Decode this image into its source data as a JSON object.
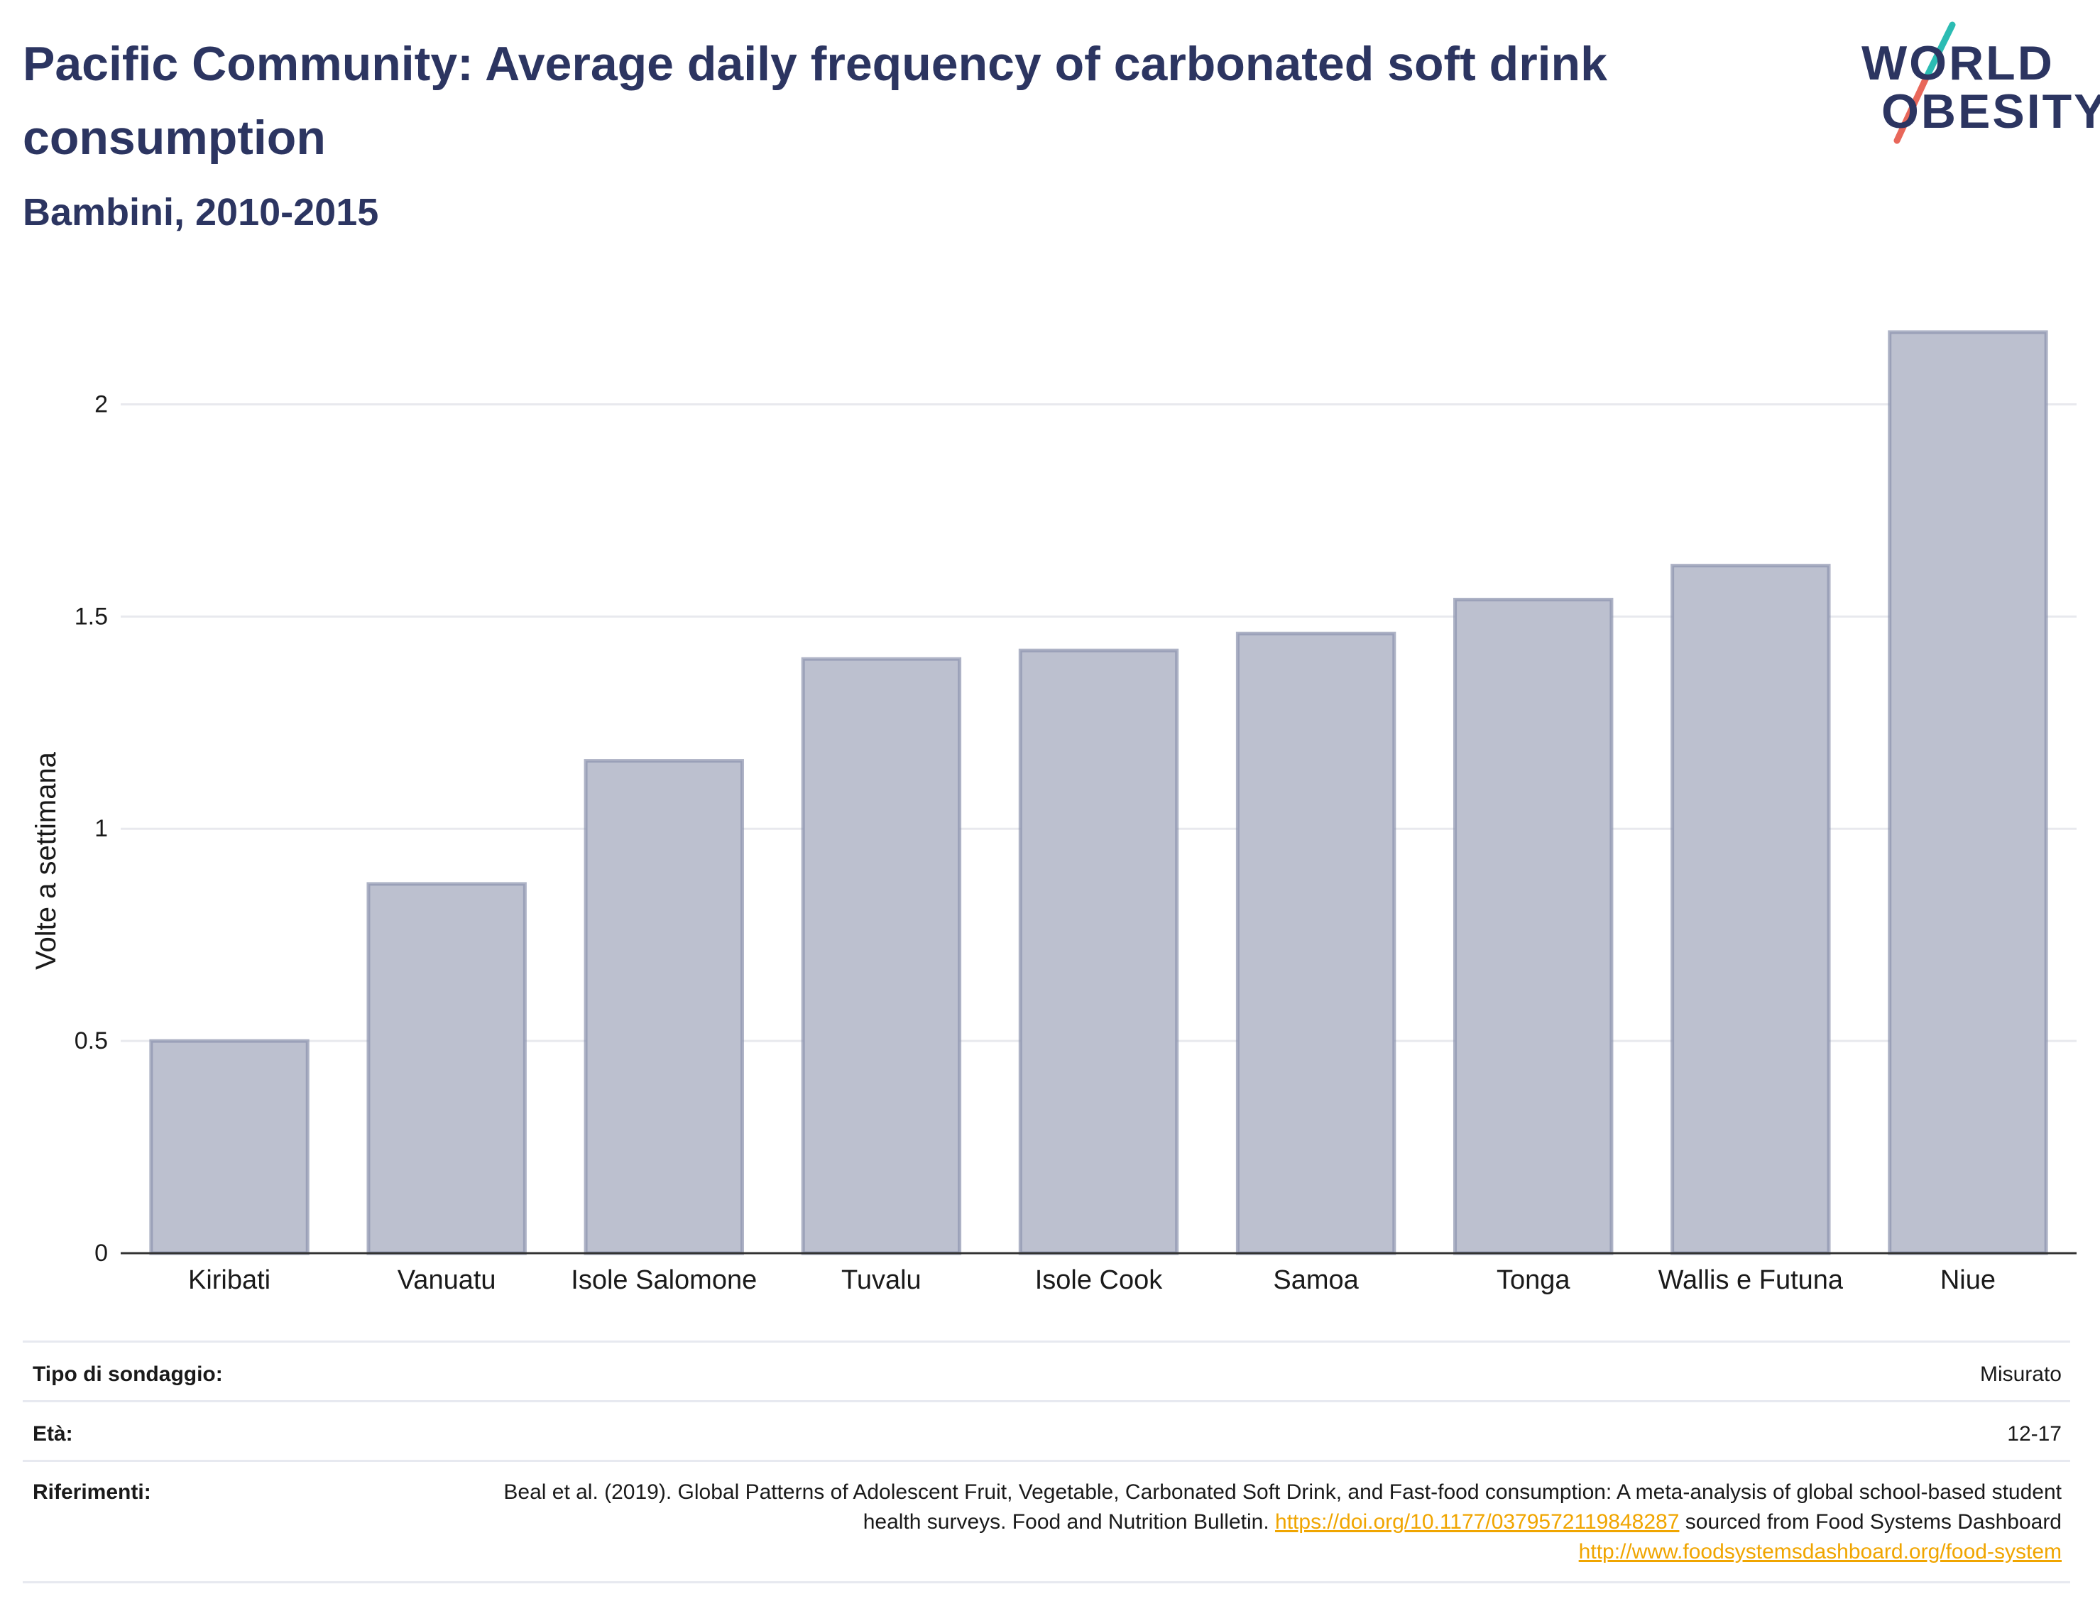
{
  "header": {
    "title": "Pacific Community: Average daily frequency of carbonated soft drink consumption",
    "subtitle": "Bambini, 2010-2015"
  },
  "logo": {
    "line1": "WORLD",
    "line2": "OBESITY",
    "slash_colors": [
      "#2bbcb3",
      "#e8675a"
    ]
  },
  "chart_data": {
    "type": "bar",
    "categories": [
      "Kiribati",
      "Vanuatu",
      "Isole Salomone",
      "Tuvalu",
      "Isole Cook",
      "Samoa",
      "Tonga",
      "Wallis e Futuna",
      "Niue"
    ],
    "values": [
      0.5,
      0.87,
      1.16,
      1.4,
      1.42,
      1.46,
      1.54,
      1.62,
      2.17
    ],
    "title": "",
    "xlabel": "",
    "ylabel": "Volte a settimana",
    "ylim": [
      0,
      2.25
    ],
    "yticks": [
      0,
      0.5,
      1,
      1.5,
      2
    ],
    "ytick_labels": [
      "0",
      "0.5",
      "1",
      "1.5",
      "2"
    ],
    "grid": true,
    "bar_fill": "#bcc0cf",
    "bar_stroke": "#8c93ae",
    "grid_color": "#e8e9ee"
  },
  "meta": {
    "survey_label": "Tipo di sondaggio:",
    "survey_value": "Misurato",
    "age_label": "Età:",
    "age_value": "12-17",
    "ref_label": "Riferimenti:",
    "ref_text1": "Beal et al. (2019). Global Patterns of Adolescent Fruit, Vegetable, Carbonated Soft Drink, and Fast-food consumption: A meta-analysis of global school-based student health surveys. Food and Nutrition Bulletin.",
    "ref_link1": "https://doi.org/10.1177/0379572119848287",
    "ref_text2": "sourced from Food Systems Dashboard",
    "ref_link2": "http://www.foodsystemsdashboard.org/food-system"
  }
}
